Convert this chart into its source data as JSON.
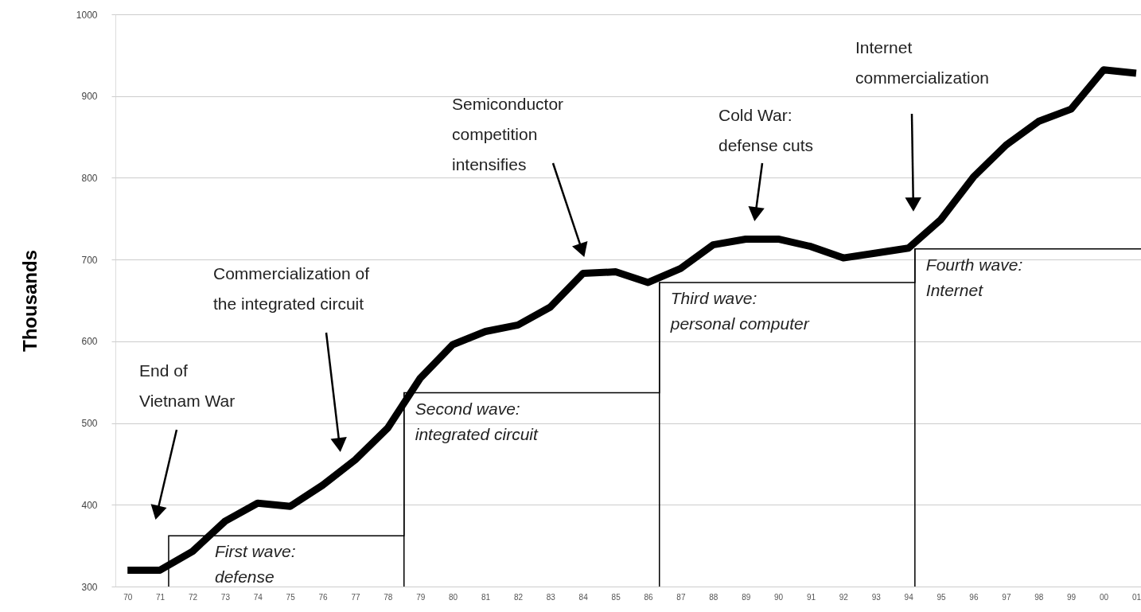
{
  "chart_data": {
    "type": "line",
    "ylabel": "Thousands",
    "xlim": [
      "1969-08-18",
      "2001-02-24"
    ],
    "ylim": [
      300,
      1000
    ],
    "xticks": [
      {
        "value": "1970",
        "label": "70"
      },
      {
        "value": "1971",
        "label": "71"
      },
      {
        "value": "1972",
        "label": "72"
      },
      {
        "value": "1973",
        "label": "73"
      },
      {
        "value": "1974",
        "label": "74"
      },
      {
        "value": "1975",
        "label": "75"
      },
      {
        "value": "1976",
        "label": "76"
      },
      {
        "value": "1977",
        "label": "77"
      },
      {
        "value": "1978",
        "label": "78"
      },
      {
        "value": "1979",
        "label": "79"
      },
      {
        "value": "1980",
        "label": "80"
      },
      {
        "value": "1981",
        "label": "81"
      },
      {
        "value": "1982",
        "label": "82"
      },
      {
        "value": "1983",
        "label": "83"
      },
      {
        "value": "1984",
        "label": "84"
      },
      {
        "value": "1985",
        "label": "85"
      },
      {
        "value": "1986",
        "label": "86"
      },
      {
        "value": "1987",
        "label": "87"
      },
      {
        "value": "1988",
        "label": "88"
      },
      {
        "value": "1989",
        "label": "89"
      },
      {
        "value": "1990",
        "label": "90"
      },
      {
        "value": "1991",
        "label": "91"
      },
      {
        "value": "1992",
        "label": "92"
      },
      {
        "value": "1993",
        "label": "93"
      },
      {
        "value": "1994",
        "label": "94"
      },
      {
        "value": "1995",
        "label": "95"
      },
      {
        "value": "1996",
        "label": "96"
      },
      {
        "value": "1997",
        "label": "97"
      },
      {
        "value": "1998",
        "label": "98"
      },
      {
        "value": "1999",
        "label": "99"
      },
      {
        "value": "2000",
        "label": "00"
      },
      {
        "value": "2001",
        "label": "01"
      }
    ],
    "yticks": [
      300,
      400,
      500,
      600,
      700,
      800,
      900,
      1000
    ],
    "grid": "y",
    "line_style": "solid",
    "series": [
      {
        "color": "#000000",
        "x": [
          "1970",
          "1971",
          "1972",
          "1973",
          "1974",
          "1975",
          "1976",
          "1977",
          "1978",
          "1979",
          "1980",
          "1981",
          "1982",
          "1983",
          "1984",
          "1985",
          "1986",
          "1987",
          "1988",
          "1989",
          "1990",
          "1991",
          "1992",
          "1993",
          "1994",
          "1995",
          "1996",
          "1997",
          "1998",
          "1999",
          "2000",
          "2001"
        ],
        "values": [
          320,
          320,
          343,
          380,
          402,
          398,
          424,
          455,
          494,
          555,
          596,
          612,
          620,
          642,
          683,
          685,
          672,
          689,
          718,
          725,
          725,
          716,
          702,
          708,
          714,
          749,
          801,
          840,
          869,
          884,
          932,
          928
        ]
      },
      {
        "type": "step",
        "color": "#000000",
        "x": [
          "1971-04-08",
          "1971-04-08",
          "1978-07-02",
          "1986-05-08",
          "1994-03-15",
          "2001-02-24"
        ],
        "values": [
          300,
          362,
          537,
          672,
          713,
          713
        ]
      }
    ],
    "annotations": [
      "End of\nVietnam War",
      "Commercialization of\nthe integrated circuit",
      "Semiconductor\ncompetition\nintensifies",
      "Cold War:\ndefense cuts",
      "Internet\ncommercialization",
      {
        "text": "First wave:\ndefense",
        "x": "1971-04-08",
        "y": 362
      },
      {
        "text": "Second wave:\nintegrated circuit",
        "x": "1978-07-02",
        "y": 537
      },
      {
        "text": "Third wave:\npersonal computer",
        "x": "1986-05-08",
        "y": 672
      },
      {
        "text": "Fourth wave:\nInternet",
        "x": "1994-03-15",
        "y": 713
      }
    ]
  }
}
